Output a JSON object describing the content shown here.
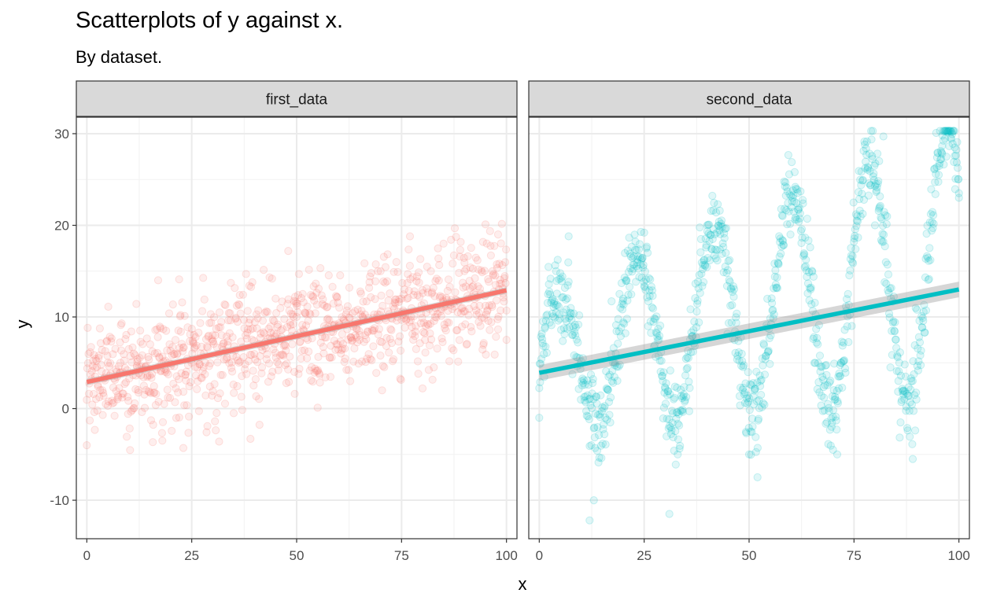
{
  "title": "Scatterplots of y against x.",
  "subtitle": "By dataset.",
  "chart_data": {
    "type": "scatter",
    "xlabel": "x",
    "ylabel": "y",
    "xlim": [
      -2.5,
      102.5
    ],
    "ylim": [
      -14.2,
      31.8
    ],
    "x_ticks": [
      0,
      25,
      50,
      75,
      100
    ],
    "x_tick_labels": [
      "0",
      "25",
      "50",
      "75",
      "100"
    ],
    "y_ticks": [
      -10,
      0,
      10,
      20,
      30
    ],
    "y_tick_labels": [
      "-10",
      "0",
      "10",
      "20",
      "30"
    ],
    "grid": true,
    "facets": [
      {
        "name": "first_data",
        "color": "#F8766D",
        "n_points": 1000,
        "pattern": "linear trend plus noise: y ≈ 3 + 0.1·x, residual sd ≈ 3",
        "fit_line": {
          "x": [
            0,
            100
          ],
          "y": [
            2.9,
            12.9
          ]
        },
        "sample_points": [
          [
            0,
            -4.0
          ],
          [
            2,
            3.5
          ],
          [
            5,
            0.3
          ],
          [
            8,
            5.0
          ],
          [
            12,
            4.5
          ],
          [
            17,
            14.0
          ],
          [
            18,
            -3.5
          ],
          [
            22,
            14.1
          ],
          [
            23,
            -4.3
          ],
          [
            30,
            8.0
          ],
          [
            35,
            -0.5
          ],
          [
            39,
            -3.3
          ],
          [
            45,
            12.0
          ],
          [
            48,
            17.2
          ],
          [
            50,
            10.0
          ],
          [
            55,
            0.1
          ],
          [
            60,
            9.0
          ],
          [
            70,
            15.0
          ],
          [
            75,
            12.0
          ],
          [
            77,
            18.8
          ],
          [
            80,
            2.2
          ],
          [
            85,
            18.0
          ],
          [
            90,
            15.0
          ],
          [
            95,
            20.1
          ],
          [
            98,
            19.0
          ],
          [
            100,
            7.5
          ]
        ]
      },
      {
        "name": "second_data",
        "color": "#00BFC4",
        "n_points": 1000,
        "pattern": "sinusoid with growing amplitude plus noise, period ≈ 18.5",
        "fit_line": {
          "x": [
            0,
            100
          ],
          "y": [
            3.9,
            13.0
          ]
        },
        "sample_points": [
          [
            0,
            -1.0
          ],
          [
            4,
            15.0
          ],
          [
            7,
            18.8
          ],
          [
            12,
            -12.2
          ],
          [
            13,
            -10.0
          ],
          [
            20,
            12.0
          ],
          [
            25,
            19.2
          ],
          [
            31,
            -11.5
          ],
          [
            33,
            -5.0
          ],
          [
            40,
            20.0
          ],
          [
            43,
            21.6
          ],
          [
            50,
            -5.0
          ],
          [
            52,
            -7.5
          ],
          [
            58,
            21.0
          ],
          [
            61,
            24.2
          ],
          [
            70,
            -4.5
          ],
          [
            71,
            -5.0
          ],
          [
            80,
            20.0
          ],
          [
            81,
            27.0
          ],
          [
            82,
            29.7
          ],
          [
            89,
            -5.5
          ],
          [
            96,
            27.8
          ],
          [
            99,
            28.5
          ],
          [
            100,
            23.0
          ]
        ]
      }
    ]
  }
}
